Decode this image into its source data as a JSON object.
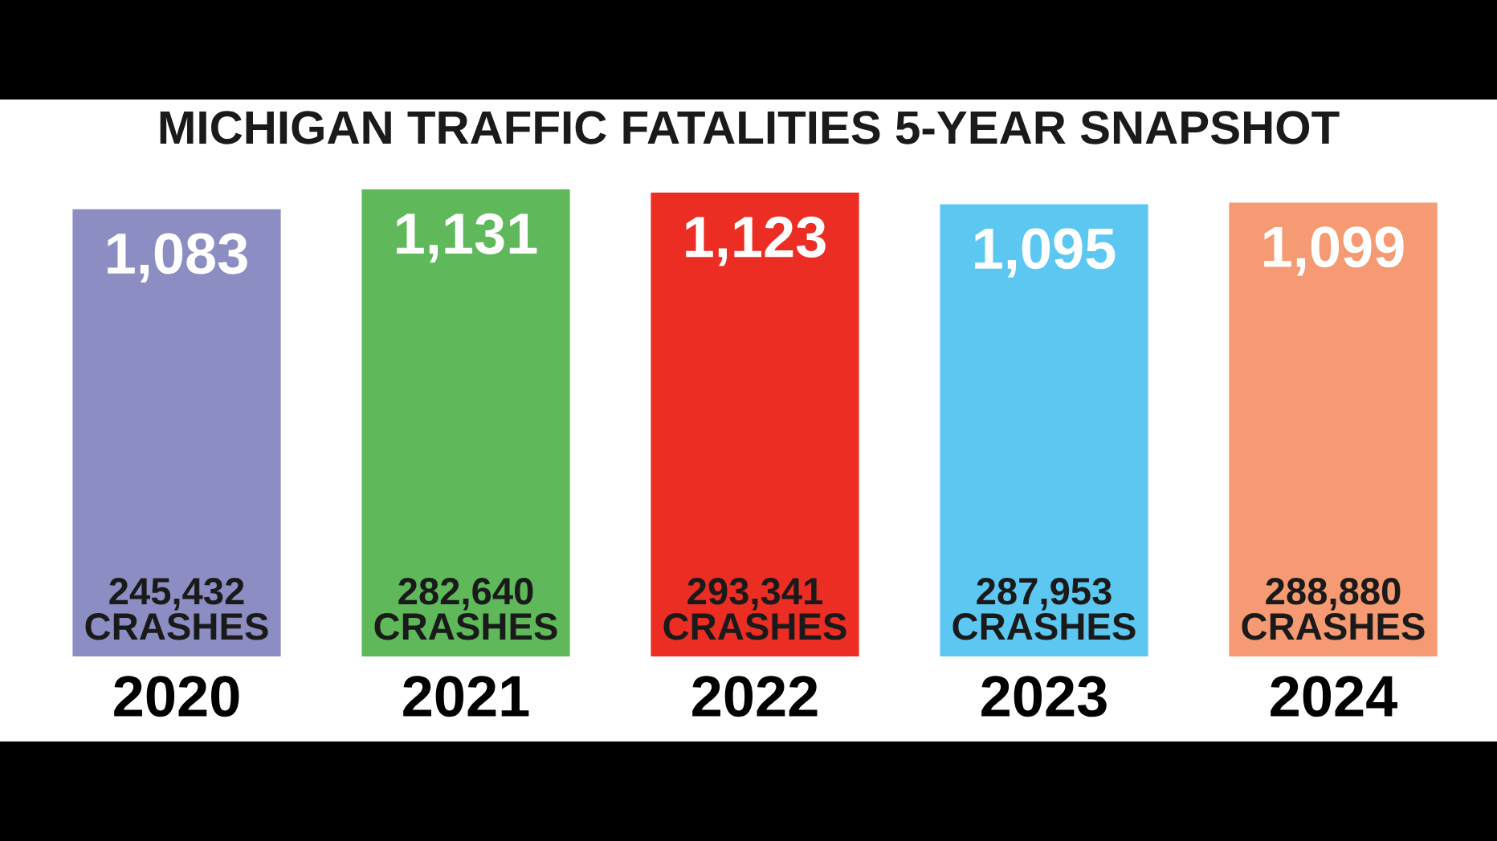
{
  "chart_data": {
    "type": "bar",
    "title": "MICHIGAN TRAFFIC FATALITIES 5-YEAR SNAPSHOT",
    "categories": [
      "2020",
      "2021",
      "2022",
      "2023",
      "2024"
    ],
    "values": [
      1083,
      1131,
      1123,
      1095,
      1099
    ],
    "colors": [
      "#8c8ec3",
      "#5fb95a",
      "#ec2d23",
      "#5cc8f2",
      "#f59a72"
    ],
    "value_labels": [
      "1,083",
      "1,131",
      "1,123",
      "1,095",
      "1,099"
    ],
    "annotations": [
      "245,432\nCRASHES",
      "282,640\nCRASHES",
      "293,341\nCRASHES",
      "287,953\nCRASHES",
      "288,880\nCRASHES"
    ]
  }
}
